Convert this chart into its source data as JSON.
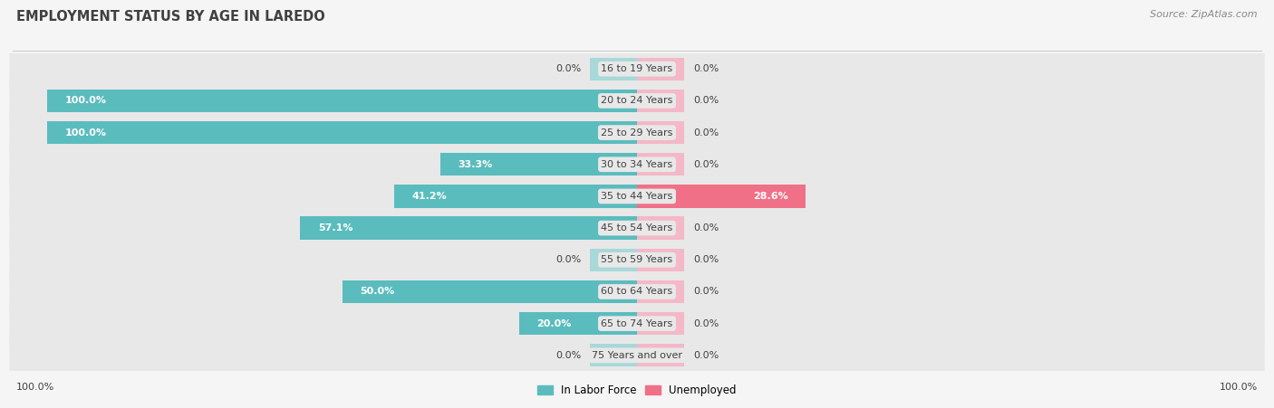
{
  "title": "EMPLOYMENT STATUS BY AGE IN LAREDO",
  "source": "Source: ZipAtlas.com",
  "categories": [
    "16 to 19 Years",
    "20 to 24 Years",
    "25 to 29 Years",
    "30 to 34 Years",
    "35 to 44 Years",
    "45 to 54 Years",
    "55 to 59 Years",
    "60 to 64 Years",
    "65 to 74 Years",
    "75 Years and over"
  ],
  "labor_force": [
    0.0,
    100.0,
    100.0,
    33.3,
    41.2,
    57.1,
    0.0,
    50.0,
    20.0,
    0.0
  ],
  "unemployed": [
    0.0,
    0.0,
    0.0,
    0.0,
    28.6,
    0.0,
    0.0,
    0.0,
    0.0,
    0.0
  ],
  "labor_force_color": "#5bbcbe",
  "unemployed_color": "#f07088",
  "labor_force_light": "#a8d8d8",
  "unemployed_light": "#f4b8c8",
  "row_bg_color": "#e8e8e8",
  "fig_bg_color": "#f5f5f5",
  "title_color": "#404040",
  "source_color": "#888888",
  "text_color": "#404040",
  "max_val": 100.0,
  "legend_labels": [
    "In Labor Force",
    "Unemployed"
  ],
  "axis_label": "100.0%",
  "placeholder_pct": 8.0
}
